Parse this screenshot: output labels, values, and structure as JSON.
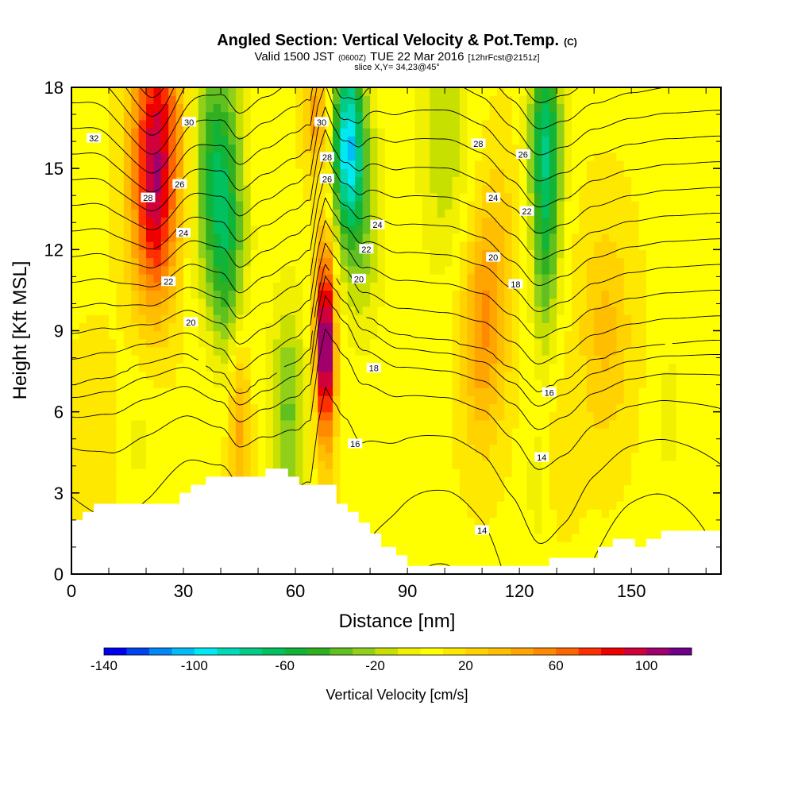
{
  "header": {
    "title": "Angled Section: Vertical Velocity & Pot.Temp.",
    "title_unit": "(C)",
    "valid_prefix": "Valid 1500 JST",
    "valid_utc": "(0600Z)",
    "valid_date": "TUE 22 Mar 2016",
    "forecast": "[12hrFcst@2151z]",
    "slice": "slice X,Y= 34,23@45°"
  },
  "chart_data": {
    "type": "heatmap",
    "title": "Angled Section: Vertical Velocity & Pot.Temp. (C)",
    "xlabel": "Distance [nm]",
    "ylabel": "Height [Kft MSL]",
    "xlim": [
      0,
      174
    ],
    "ylim": [
      0,
      18
    ],
    "x_ticks": [
      0,
      30,
      60,
      90,
      120,
      150
    ],
    "y_ticks": [
      0,
      3,
      6,
      9,
      12,
      15,
      18
    ],
    "x_tick_labels": [
      "0",
      "30",
      "60",
      "90",
      "120",
      "150"
    ],
    "y_tick_labels": [
      "0",
      "3",
      "6",
      "9",
      "12",
      "15",
      "18"
    ],
    "grid": false,
    "field": {
      "name": "Vertical Velocity",
      "units": "cm/s",
      "features": [
        {
          "x": 23,
          "y": 16.5,
          "sx": 5,
          "sy": 3.2,
          "w": 75
        },
        {
          "x": 22,
          "y": 12.5,
          "sx": 4,
          "sy": 2.5,
          "w": 45
        },
        {
          "x": 39,
          "y": 15,
          "sx": 4.5,
          "sy": 3.2,
          "w": -65
        },
        {
          "x": 42,
          "y": 11,
          "sx": 3.5,
          "sy": 2.5,
          "w": -35
        },
        {
          "x": 58,
          "y": 6,
          "sx": 3.5,
          "sy": 3,
          "w": -40
        },
        {
          "x": 45,
          "y": 5.5,
          "sx": 2,
          "sy": 2.5,
          "w": 35
        },
        {
          "x": 68,
          "y": 8.5,
          "sx": 1.8,
          "sy": 2.6,
          "w": 115
        },
        {
          "x": 66,
          "y": 17,
          "sx": 2.5,
          "sy": 1.5,
          "w": 40
        },
        {
          "x": 74,
          "y": 16,
          "sx": 3,
          "sy": 2.5,
          "w": -100
        },
        {
          "x": 78,
          "y": 13,
          "sx": 4,
          "sy": 3,
          "w": -30
        },
        {
          "x": 100,
          "y": 16,
          "sx": 5,
          "sy": 3.5,
          "w": -25
        },
        {
          "x": 110,
          "y": 9,
          "sx": 4,
          "sy": 3,
          "w": 40
        },
        {
          "x": 115,
          "y": 12,
          "sx": 4,
          "sy": 3,
          "w": 15
        },
        {
          "x": 127,
          "y": 16,
          "sx": 3,
          "sy": 3,
          "w": -75
        },
        {
          "x": 127,
          "y": 11,
          "sx": 2.5,
          "sy": 2.5,
          "w": -30
        },
        {
          "x": 143,
          "y": 9,
          "sx": 5,
          "sy": 3,
          "w": 25
        },
        {
          "x": 160,
          "y": 6,
          "sx": 3,
          "sy": 2,
          "w": -12
        },
        {
          "x": 125,
          "y": 3.5,
          "sx": 2.5,
          "sy": 2,
          "w": -15
        },
        {
          "x": 6,
          "y": 5,
          "sx": 4,
          "sy": 2.5,
          "w": 12
        },
        {
          "x": 18,
          "y": 5,
          "sx": 4,
          "sy": 2,
          "w": -10
        },
        {
          "x": 130,
          "y": 4.5,
          "sx": 4,
          "sy": 2,
          "w": 10
        }
      ]
    },
    "contours": {
      "name": "Pot.Temp.",
      "units": "C",
      "levels": [
        12,
        13,
        14,
        15,
        16,
        17,
        18,
        19,
        20,
        21,
        22,
        23,
        24,
        25,
        26,
        27,
        28,
        29,
        30,
        31,
        32,
        33
      ]
    },
    "contour_labels": [
      {
        "text": "32",
        "x": 6,
        "y": 16.1
      },
      {
        "text": "30",
        "x": 31.5,
        "y": 16.7
      },
      {
        "text": "28",
        "x": 20.5,
        "y": 13.9
      },
      {
        "text": "26",
        "x": 29,
        "y": 14.4
      },
      {
        "text": "24",
        "x": 30,
        "y": 12.6
      },
      {
        "text": "22",
        "x": 26,
        "y": 10.8
      },
      {
        "text": "20",
        "x": 32,
        "y": 9.3
      },
      {
        "text": "30",
        "x": 67,
        "y": 16.7
      },
      {
        "text": "28",
        "x": 68.5,
        "y": 15.4
      },
      {
        "text": "26",
        "x": 68.5,
        "y": 14.6
      },
      {
        "text": "24",
        "x": 82,
        "y": 12.9
      },
      {
        "text": "22",
        "x": 79,
        "y": 12
      },
      {
        "text": "20",
        "x": 77,
        "y": 10.9
      },
      {
        "text": "18",
        "x": 81,
        "y": 7.6
      },
      {
        "text": "16",
        "x": 76,
        "y": 4.8
      },
      {
        "text": "28",
        "x": 109,
        "y": 15.9
      },
      {
        "text": "26",
        "x": 121,
        "y": 15.5
      },
      {
        "text": "24",
        "x": 113,
        "y": 13.9
      },
      {
        "text": "22",
        "x": 122,
        "y": 13.4
      },
      {
        "text": "20",
        "x": 113,
        "y": 11.7
      },
      {
        "text": "18",
        "x": 119,
        "y": 10.7
      },
      {
        "text": "16",
        "x": 128,
        "y": 6.7
      },
      {
        "text": "14",
        "x": 126,
        "y": 4.3
      },
      {
        "text": "14",
        "x": 110,
        "y": 1.6
      }
    ],
    "terrain": [
      [
        0,
        2
      ],
      [
        3,
        2
      ],
      [
        3,
        2.3
      ],
      [
        6,
        2.3
      ],
      [
        6,
        2.6
      ],
      [
        29,
        2.6
      ],
      [
        29,
        3
      ],
      [
        32,
        3
      ],
      [
        32,
        3.3
      ],
      [
        36,
        3.3
      ],
      [
        36,
        3.6
      ],
      [
        52,
        3.6
      ],
      [
        52,
        3.9
      ],
      [
        58,
        3.9
      ],
      [
        58,
        3.6
      ],
      [
        61,
        3.6
      ],
      [
        61,
        3.3
      ],
      [
        71,
        3.3
      ],
      [
        71,
        2.6
      ],
      [
        74,
        2.6
      ],
      [
        74,
        2.3
      ],
      [
        77,
        2.3
      ],
      [
        77,
        1.9
      ],
      [
        80,
        1.9
      ],
      [
        80,
        1.5
      ],
      [
        83,
        1.5
      ],
      [
        83,
        1
      ],
      [
        87,
        1
      ],
      [
        87,
        0.7
      ],
      [
        90,
        0.7
      ],
      [
        90,
        0.3
      ],
      [
        128,
        0.3
      ],
      [
        128,
        0.6
      ],
      [
        141,
        0.6
      ],
      [
        141,
        1
      ],
      [
        145,
        1
      ],
      [
        145,
        1.3
      ],
      [
        151,
        1.3
      ],
      [
        151,
        1
      ],
      [
        154,
        1
      ],
      [
        154,
        1.3
      ],
      [
        158,
        1.3
      ],
      [
        158,
        1.6
      ],
      [
        174,
        1.6
      ]
    ],
    "colorbar": {
      "label": "Vertical Velocity [cm/s]",
      "min": -140,
      "max": 120,
      "step": 10,
      "tick_labels": [
        "-140",
        "-100",
        "-60",
        "-20",
        "20",
        "60",
        "100"
      ],
      "tick_values": [
        -140,
        -100,
        -60,
        -20,
        20,
        60,
        100
      ],
      "colors": [
        "#0000f0",
        "#0044f0",
        "#0088f8",
        "#00bcf8",
        "#00e8f0",
        "#00d8b8",
        "#00cc88",
        "#00c060",
        "#10b438",
        "#30b020",
        "#60c020",
        "#90d018",
        "#c8e000",
        "#f0f000",
        "#ffff00",
        "#ffe800",
        "#ffd200",
        "#ffbe00",
        "#ffa400",
        "#ff8a00",
        "#ff6600",
        "#ff3000",
        "#ee0000",
        "#d0003a",
        "#a0006c",
        "#70008c"
      ]
    }
  }
}
